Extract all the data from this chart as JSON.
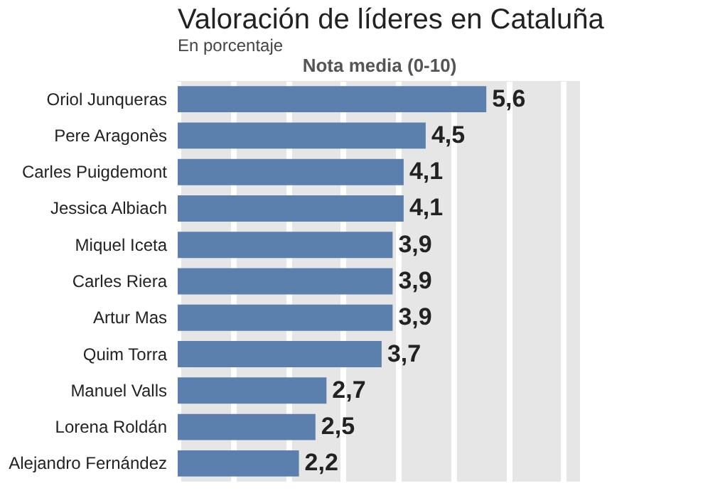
{
  "chart_data": {
    "type": "bar",
    "orientation": "horizontal",
    "title": "Valoración de líderes en Cataluña",
    "subtitle": "En porcentaje",
    "xlabel": "Nota media (0-10)",
    "categories": [
      "Oriol Junqueras",
      "Pere Aragonès",
      "Carles Puigdemont",
      "Jessica Albiach",
      "Miquel Iceta",
      "Carles Riera",
      "Artur Mas",
      "Quim Torra",
      "Manuel Valls",
      "Lorena Roldán",
      "Alejandro Fernández"
    ],
    "values": [
      5.6,
      4.5,
      4.1,
      4.1,
      3.9,
      3.9,
      3.9,
      3.7,
      2.7,
      2.5,
      2.2
    ],
    "value_labels": [
      "5,6",
      "4,5",
      "4,1",
      "4,1",
      "3,9",
      "3,9",
      "3,9",
      "3,7",
      "2,7",
      "2,5",
      "2,2"
    ],
    "color": "#5b80ad",
    "xlim": [
      0,
      7.3
    ],
    "xticks": [
      {
        "value": 0,
        "label": null
      },
      {
        "value": 1,
        "label": null
      },
      {
        "value": 2,
        "label": null
      },
      {
        "value": 3,
        "label": null
      },
      {
        "value": 4,
        "label": null
      },
      {
        "value": 5,
        "label": null
      },
      {
        "value": 6,
        "label": null
      },
      {
        "value": 7,
        "label": null
      }
    ],
    "grid": "x",
    "tick_labels": "y"
  }
}
